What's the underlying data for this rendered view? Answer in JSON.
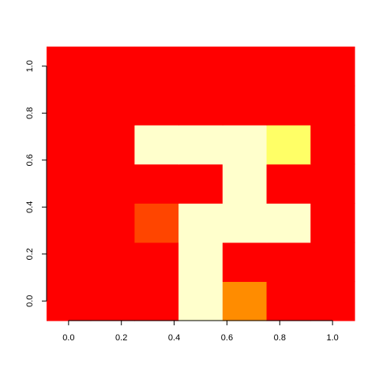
{
  "chart_data": {
    "type": "heatmap",
    "title": "",
    "xlabel": "",
    "ylabel": "",
    "x_centers": [
      0.0,
      0.1667,
      0.3333,
      0.5,
      0.6667,
      0.8333,
      1.0
    ],
    "y_centers": [
      0.0,
      0.1667,
      0.3333,
      0.5,
      0.6667,
      0.8333,
      1.0
    ],
    "xlim": [
      -0.0833,
      1.0833
    ],
    "ylim": [
      -0.0833,
      1.0833
    ],
    "x_ticks": [
      "0.0",
      "0.2",
      "0.4",
      "0.6",
      "0.8",
      "1.0"
    ],
    "y_ticks": [
      "0.0",
      "0.2",
      "0.4",
      "0.6",
      "0.8",
      "1.0"
    ],
    "color_scale": "heat",
    "rows_bottom_to_top": [
      [
        1,
        1,
        1,
        9,
        4,
        1,
        1
      ],
      [
        1,
        1,
        1,
        9,
        1,
        1,
        1
      ],
      [
        1,
        1,
        2,
        9,
        9,
        9,
        1
      ],
      [
        1,
        1,
        1,
        1,
        9,
        1,
        1
      ],
      [
        1,
        1,
        9,
        9,
        9,
        7,
        1
      ],
      [
        1,
        1,
        1,
        1,
        1,
        1,
        1
      ],
      [
        1,
        1,
        1,
        1,
        1,
        1,
        1
      ]
    ],
    "level_colors": {
      "1": "#ff0000",
      "2": "#ff4500",
      "4": "#ff8c00",
      "7": "#ffff66",
      "9": "#ffffcc"
    },
    "grid": false,
    "legend": "none"
  }
}
